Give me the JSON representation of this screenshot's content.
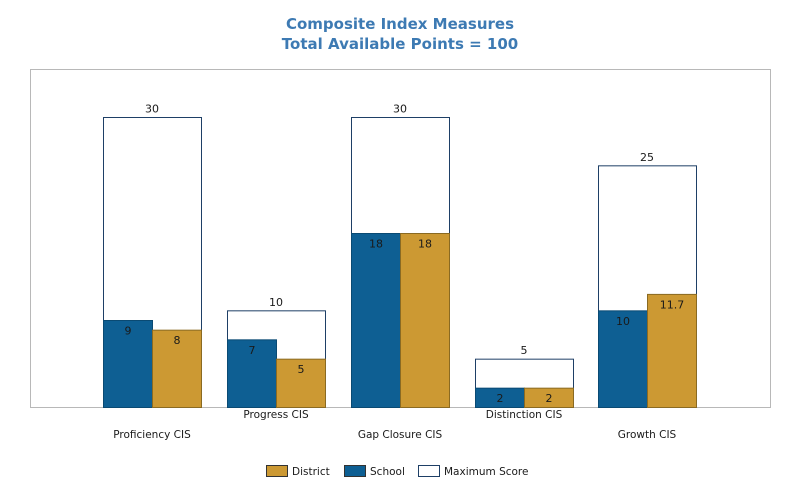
{
  "chart_data": {
    "type": "bar",
    "title": "Composite Index Measures",
    "subtitle": "Total Available Points = 100",
    "categories": [
      "Proficiency CIS",
      "Progress CIS",
      "Gap Closure CIS",
      "Distinction CIS",
      "Growth CIS"
    ],
    "series": [
      {
        "name": "School",
        "values": [
          9,
          7,
          18,
          2,
          10
        ],
        "color": "#0e5f93"
      },
      {
        "name": "District",
        "values": [
          8,
          5,
          18,
          2,
          11.7
        ],
        "color": "#cc9933"
      },
      {
        "name": "Maximum Score",
        "values": [
          30,
          10,
          30,
          5,
          25
        ],
        "color": "#ffffff",
        "stroke": "#1e3f66"
      }
    ],
    "legend_order": [
      "District",
      "School",
      "Maximum Score"
    ],
    "ylim": [
      0,
      30
    ],
    "grid": false,
    "legend_position": "bottom"
  }
}
